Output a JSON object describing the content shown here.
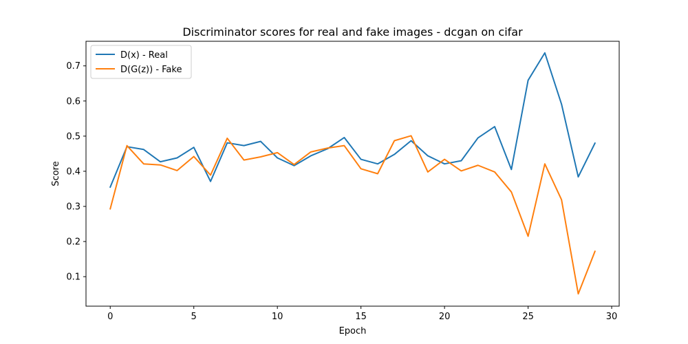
{
  "chart_data": {
    "type": "line",
    "title": "Discriminator scores for real and fake images - dcgan on cifar",
    "xlabel": "Epoch",
    "ylabel": "Score",
    "xlim": [
      -1.45,
      30.45
    ],
    "ylim": [
      0.016,
      0.77
    ],
    "xticks": [
      0,
      5,
      10,
      15,
      20,
      25,
      30
    ],
    "yticks": [
      0.1,
      0.2,
      0.3,
      0.4,
      0.5,
      0.6,
      0.7
    ],
    "grid": false,
    "legend_position": "top-left",
    "x": [
      0,
      1,
      2,
      3,
      4,
      5,
      6,
      7,
      8,
      9,
      10,
      11,
      12,
      13,
      14,
      15,
      16,
      17,
      18,
      19,
      20,
      21,
      22,
      23,
      24,
      25,
      26,
      27,
      28,
      29
    ],
    "series": [
      {
        "name": "D(x) - Real",
        "color": "#1f77b4",
        "values": [
          0.355,
          0.47,
          0.462,
          0.427,
          0.438,
          0.468,
          0.371,
          0.481,
          0.473,
          0.485,
          0.438,
          0.416,
          0.444,
          0.464,
          0.496,
          0.434,
          0.421,
          0.448,
          0.487,
          0.444,
          0.421,
          0.43,
          0.495,
          0.527,
          0.405,
          0.659,
          0.737,
          0.591,
          0.384,
          0.48
        ]
      },
      {
        "name": "D(G(z)) - Fake",
        "color": "#ff7f0e",
        "values": [
          0.293,
          0.473,
          0.421,
          0.418,
          0.402,
          0.442,
          0.389,
          0.494,
          0.432,
          0.441,
          0.453,
          0.419,
          0.455,
          0.466,
          0.473,
          0.407,
          0.393,
          0.487,
          0.501,
          0.398,
          0.434,
          0.401,
          0.417,
          0.398,
          0.341,
          0.215,
          0.421,
          0.319,
          0.051,
          0.172
        ]
      }
    ]
  }
}
